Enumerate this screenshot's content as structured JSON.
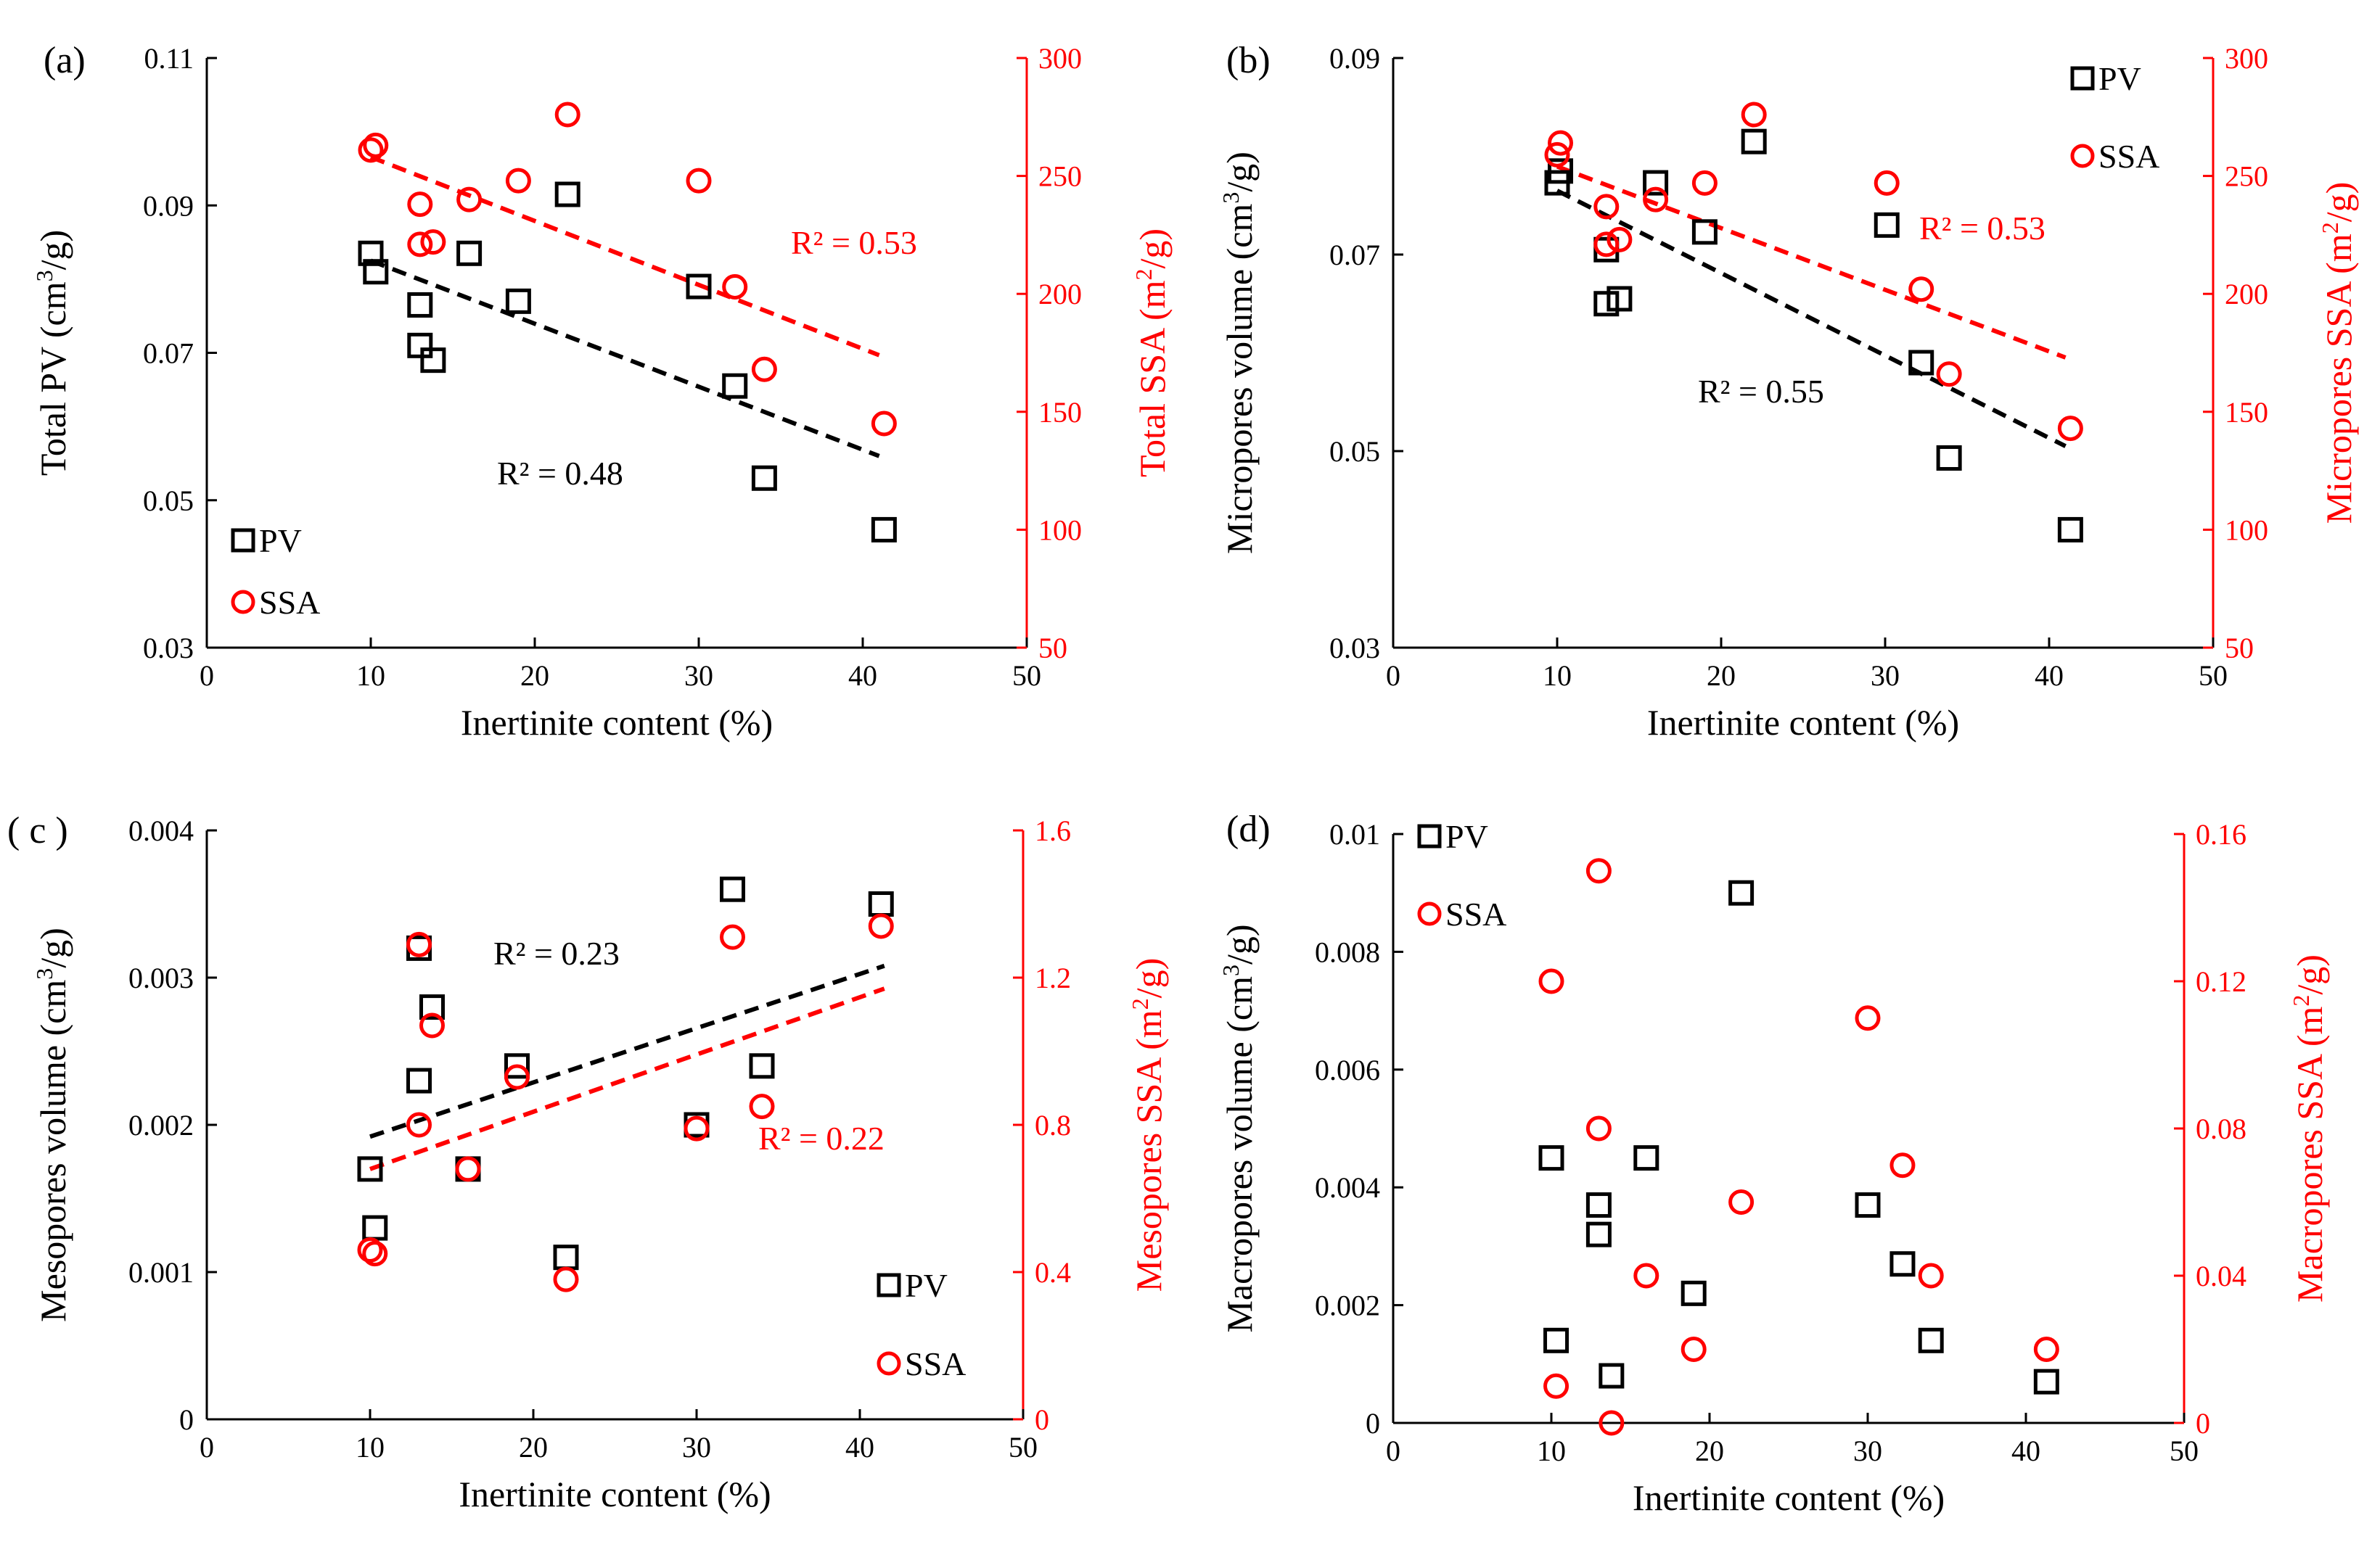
{
  "colors": {
    "pv": "#000000",
    "ssa": "#ff0000"
  },
  "legend": {
    "pv": "PV",
    "ssa": "SSA"
  },
  "chart_data": [
    {
      "type": "scatter",
      "panel": "(a)",
      "xlabel": "Inertinite content (%)",
      "ylabel_left": "Total PV (cm³/g)",
      "ylabel_right": "Total SSA (m²/g)",
      "xlim": [
        0,
        50
      ],
      "xticks": [
        0,
        10,
        20,
        30,
        40,
        50
      ],
      "ylim_left": [
        0.03,
        0.11
      ],
      "yticks_left": [
        0.03,
        0.05,
        0.07,
        0.09,
        0.11
      ],
      "ylim_right": [
        50,
        300
      ],
      "yticks_right": [
        50,
        100,
        150,
        200,
        250,
        300
      ],
      "pv_points": [
        [
          10,
          0.0835
        ],
        [
          10.3,
          0.081
        ],
        [
          13,
          0.0765
        ],
        [
          13,
          0.071
        ],
        [
          13.8,
          0.069
        ],
        [
          16,
          0.0835
        ],
        [
          19,
          0.077
        ],
        [
          22,
          0.0915
        ],
        [
          30,
          0.079
        ],
        [
          32.2,
          0.0655
        ],
        [
          34,
          0.053
        ],
        [
          41.3,
          0.046
        ]
      ],
      "ssa_points": [
        [
          10,
          261
        ],
        [
          10.3,
          263
        ],
        [
          13,
          238
        ],
        [
          13,
          221
        ],
        [
          13.8,
          222
        ],
        [
          16,
          240
        ],
        [
          19,
          248
        ],
        [
          22,
          276
        ],
        [
          30,
          248
        ],
        [
          32.2,
          203
        ],
        [
          34,
          168
        ],
        [
          41.3,
          145
        ]
      ],
      "pv_trend": [
        [
          10,
          0.0825
        ],
        [
          41,
          0.056
        ]
      ],
      "ssa_trend": [
        [
          10,
          258
        ],
        [
          41,
          174
        ]
      ],
      "pv_r2": "R² = 0.48",
      "ssa_r2": "R² = 0.53",
      "legend_position": "bottom-left"
    },
    {
      "type": "scatter",
      "panel": "(b)",
      "xlabel": "Inertinite content (%)",
      "ylabel_left": "Micropores volume (cm³/g)",
      "ylabel_right": "Micropores SSA (m²/g)",
      "xlim": [
        0,
        50
      ],
      "xticks": [
        0,
        10,
        20,
        30,
        40,
        50
      ],
      "ylim_left": [
        0.03,
        0.09
      ],
      "yticks_left": [
        0.03,
        0.05,
        0.07,
        0.09
      ],
      "ylim_right": [
        50,
        300
      ],
      "yticks_right": [
        50,
        100,
        150,
        200,
        250,
        300
      ],
      "pv_points": [
        [
          10,
          0.0773
        ],
        [
          10.2,
          0.0785
        ],
        [
          13,
          0.0705
        ],
        [
          13,
          0.065
        ],
        [
          13.8,
          0.0655
        ],
        [
          16,
          0.0773
        ],
        [
          19,
          0.0723
        ],
        [
          22,
          0.0815
        ],
        [
          30.1,
          0.073
        ],
        [
          32.2,
          0.059
        ],
        [
          33.9,
          0.0493
        ],
        [
          41.3,
          0.042
        ]
      ],
      "ssa_points": [
        [
          10,
          259
        ],
        [
          10.2,
          264
        ],
        [
          13,
          237
        ],
        [
          13,
          221
        ],
        [
          13.8,
          223
        ],
        [
          16,
          240
        ],
        [
          19,
          247
        ],
        [
          22,
          276
        ],
        [
          30.1,
          247
        ],
        [
          32.2,
          202
        ],
        [
          33.9,
          166
        ],
        [
          41.3,
          143
        ]
      ],
      "pv_trend": [
        [
          10,
          0.0765
        ],
        [
          41,
          0.0505
        ]
      ],
      "ssa_trend": [
        [
          10,
          254
        ],
        [
          41,
          173
        ]
      ],
      "pv_r2": "R² = 0.55",
      "ssa_r2": "R² = 0.53",
      "legend_position": "top-right"
    },
    {
      "type": "scatter",
      "panel": "( c )",
      "xlabel": "Inertinite content (%)",
      "ylabel_left": "Mesopores volume (cm³/g)",
      "ylabel_right": "Mesopores SSA (m²/g)",
      "xlim": [
        0,
        50
      ],
      "xticks": [
        0,
        10,
        20,
        30,
        40,
        50
      ],
      "ylim_left": [
        0,
        0.004
      ],
      "yticks_left": [
        0,
        0.001,
        0.002,
        0.003,
        0.004
      ],
      "ylim_right": [
        0,
        1.6
      ],
      "yticks_right": [
        0,
        0.4,
        0.8,
        1.2,
        1.6
      ],
      "pv_points": [
        [
          10,
          0.0017
        ],
        [
          10.3,
          0.0013
        ],
        [
          13,
          0.0023
        ],
        [
          13,
          0.0032
        ],
        [
          13.8,
          0.0028
        ],
        [
          16,
          0.0017
        ],
        [
          19,
          0.0024
        ],
        [
          22,
          0.0011
        ],
        [
          30,
          0.002
        ],
        [
          32.2,
          0.0036
        ],
        [
          34,
          0.0024
        ],
        [
          41.3,
          0.0035
        ]
      ],
      "ssa_points": [
        [
          10,
          0.46
        ],
        [
          10.3,
          0.45
        ],
        [
          13,
          0.8
        ],
        [
          13,
          1.29
        ],
        [
          13.8,
          1.07
        ],
        [
          16,
          0.68
        ],
        [
          19,
          0.93
        ],
        [
          22,
          0.38
        ],
        [
          30,
          0.79
        ],
        [
          32.2,
          1.31
        ],
        [
          34,
          0.85
        ],
        [
          41.3,
          1.34
        ]
      ],
      "pv_trend": [
        [
          10,
          0.00192
        ],
        [
          41.5,
          0.00308
        ]
      ],
      "ssa_trend": [
        [
          10,
          0.68
        ],
        [
          41.5,
          1.17
        ]
      ],
      "pv_r2": "R² = 0.23",
      "ssa_r2": "R² = 0.22",
      "legend_position": "bottom-right"
    },
    {
      "type": "scatter",
      "panel": "(d)",
      "xlabel": "Inertinite content (%)",
      "ylabel_left": "Macropores volume (cm³/g)",
      "ylabel_right": "Macropores SSA (m²/g)",
      "xlim": [
        0,
        50
      ],
      "xticks": [
        0,
        10,
        20,
        30,
        40,
        50
      ],
      "ylim_left": [
        0,
        0.01
      ],
      "yticks_left": [
        0,
        0.002,
        0.004,
        0.006,
        0.008,
        0.01
      ],
      "ylim_right": [
        0,
        0.16
      ],
      "yticks_right": [
        0,
        0.04,
        0.08,
        0.12,
        0.16
      ],
      "pv_points": [
        [
          10,
          0.0045
        ],
        [
          10.3,
          0.0014
        ],
        [
          13,
          0.0037
        ],
        [
          13,
          0.0032
        ],
        [
          13.8,
          0.0008
        ],
        [
          16,
          0.0045
        ],
        [
          19,
          0.0022
        ],
        [
          22,
          0.009
        ],
        [
          30,
          0.0037
        ],
        [
          32.2,
          0.0027
        ],
        [
          34,
          0.0014
        ],
        [
          41.3,
          0.0007
        ]
      ],
      "ssa_points": [
        [
          10,
          0.12
        ],
        [
          10.3,
          0.01
        ],
        [
          13,
          0.08
        ],
        [
          13,
          0.15
        ],
        [
          13.8,
          0.0
        ],
        [
          16,
          0.04
        ],
        [
          19,
          0.02
        ],
        [
          22,
          0.06
        ],
        [
          30,
          0.11
        ],
        [
          32.2,
          0.07
        ],
        [
          34,
          0.04
        ],
        [
          41.3,
          0.02
        ]
      ],
      "pv_trend": [],
      "ssa_trend": [],
      "pv_r2": "",
      "ssa_r2": "",
      "legend_position": "top-left"
    }
  ]
}
